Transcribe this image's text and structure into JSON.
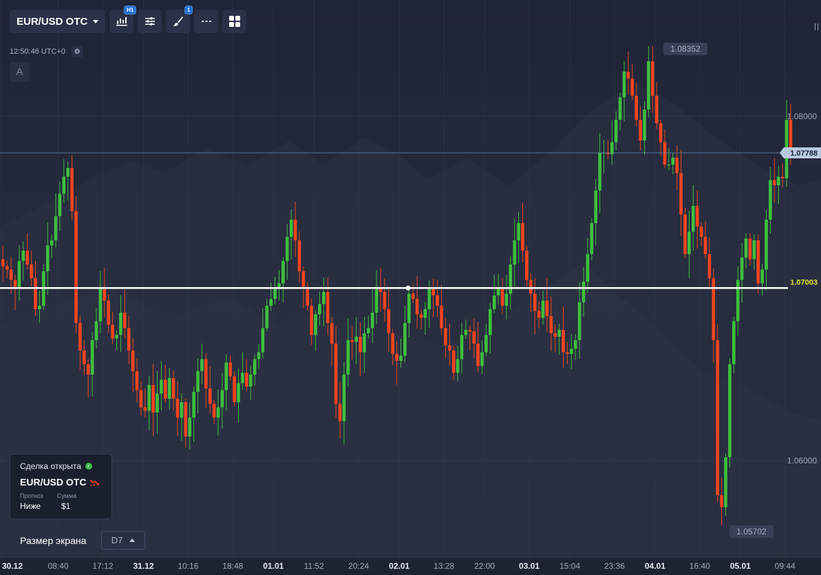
{
  "toolbar": {
    "pair_label": "EUR/USD OTC",
    "timeframe_badge": "H1",
    "drawings_badge": "1",
    "icons": [
      "candles-icon",
      "settings-sliders-icon",
      "brush-icon",
      "more-dots-icon",
      "grid-icon"
    ]
  },
  "time": {
    "clock": "12:50:46",
    "tz": "UTC+0"
  },
  "a_button": "A",
  "trade": {
    "status": "Сделка открыта",
    "pair": "EUR/USD OTC",
    "forecast_label": "Прогноз",
    "amount_label": "Сумма",
    "forecast_value": "Ниже",
    "amount_value": "$1"
  },
  "screen_size": {
    "label": "Размер экрана",
    "value": "D7"
  },
  "colors": {
    "up": "#3ec03d",
    "down": "#f2441e",
    "price_line": "#6a8bb0",
    "trade_line": "#ffffff",
    "trade_label": "#e6e62a"
  },
  "chart_data": {
    "type": "candlestick",
    "symbol": "EUR/USD OTC",
    "timeframe": "H1",
    "y_ticks": [
      1.08,
      1.06
    ],
    "ylim": [
      1.0544,
      1.087
    ],
    "current_price": 1.07788,
    "current_price_label": "1.07788",
    "trade_level": 1.07003,
    "trade_level_label": "1.07003",
    "high_label": "1.08352",
    "low_label": "1.05702",
    "x_labels": [
      {
        "label": "30.12",
        "i": 0,
        "bold": true
      },
      {
        "label": "08:40",
        "i": 14,
        "bold": false
      },
      {
        "label": "17:12",
        "i": 25,
        "bold": false
      },
      {
        "label": "31.12",
        "i": 35,
        "bold": true
      },
      {
        "label": "10:16",
        "i": 46,
        "bold": false
      },
      {
        "label": "18:48",
        "i": 57,
        "bold": false
      },
      {
        "label": "01.01",
        "i": 67,
        "bold": true
      },
      {
        "label": "11:52",
        "i": 77,
        "bold": false
      },
      {
        "label": "20:24",
        "i": 88,
        "bold": false
      },
      {
        "label": "02.01",
        "i": 98,
        "bold": true
      },
      {
        "label": "13:28",
        "i": 109,
        "bold": false
      },
      {
        "label": "22:00",
        "i": 119,
        "bold": false
      },
      {
        "label": "03.01",
        "i": 130,
        "bold": true
      },
      {
        "label": "15:04",
        "i": 140,
        "bold": false
      },
      {
        "label": "23:36",
        "i": 151,
        "bold": false
      },
      {
        "label": "04.01",
        "i": 161,
        "bold": true
      },
      {
        "label": "16:40",
        "i": 172,
        "bold": false
      },
      {
        "label": "05.01",
        "i": 182,
        "bold": true
      },
      {
        "label": "09:44",
        "i": 193,
        "bold": false
      }
    ],
    "closes": [
      1.0713,
      1.0711,
      1.0705,
      1.07,
      1.0716,
      1.0722,
      1.0714,
      1.0706,
      1.0688,
      1.069,
      1.071,
      1.0725,
      1.0728,
      1.0742,
      1.0755,
      1.0765,
      1.077,
      1.0745,
      1.068,
      1.0664,
      1.0656,
      1.065,
      1.067,
      1.0681,
      1.0701,
      1.0693,
      1.0679,
      1.0671,
      1.0673,
      1.0686,
      1.0677,
      1.0664,
      1.0652,
      1.0641,
      1.0631,
      1.0629,
      1.0644,
      1.0628,
      1.0639,
      1.0647,
      1.0636,
      1.0648,
      1.0636,
      1.0625,
      1.0634,
      1.0614,
      1.0625,
      1.064,
      1.0652,
      1.0659,
      1.0642,
      1.0633,
      1.0625,
      1.0631,
      1.0641,
      1.0657,
      1.0649,
      1.0634,
      1.0645,
      1.0651,
      1.0643,
      1.065,
      1.0659,
      1.0663,
      1.0677,
      1.069,
      1.0694,
      1.07,
      1.0703,
      1.0716,
      1.073,
      1.074,
      1.0728,
      1.071,
      1.0701,
      1.069,
      1.0673,
      1.0685,
      1.0691,
      1.0698,
      1.068,
      1.0668,
      1.0633,
      1.0623,
      1.065,
      1.067,
      1.0669,
      1.0672,
      1.0663,
      1.0674,
      1.0677,
      1.0686,
      1.0701,
      1.0698,
      1.0688,
      1.0674,
      1.0662,
      1.0658,
      1.0661,
      1.068,
      1.0697,
      1.0694,
      1.0685,
      1.0683,
      1.0688,
      1.07,
      1.0696,
      1.069,
      1.0677,
      1.0667,
      1.0664,
      1.0651,
      1.0659,
      1.0673,
      1.0676,
      1.0675,
      1.0668,
      1.0655,
      1.0663,
      1.0673,
      1.0688,
      1.0696,
      1.07,
      1.069,
      1.0697,
      1.0714,
      1.0728,
      1.0738,
      1.0722,
      1.0705,
      1.0697,
      1.0687,
      1.0683,
      1.0693,
      1.0684,
      1.0674,
      1.0672,
      1.0676,
      1.0663,
      1.0662,
      1.0665,
      1.067,
      1.0692,
      1.0704,
      1.072,
      1.0738,
      1.0757,
      1.0779,
      1.0779,
      1.0778,
      1.0785,
      1.0798,
      1.0811,
      1.0826,
      1.0822,
      1.0812,
      1.0798,
      1.0786,
      1.0804,
      1.0832,
      1.0812,
      1.0796,
      1.0785,
      1.0772,
      1.0772,
      1.0776,
      1.0767,
      1.0743,
      1.072,
      1.0733,
      1.0748,
      1.0736,
      1.073,
      1.072,
      1.0706,
      1.067,
      1.058,
      1.0573,
      1.0602,
      1.0656,
      1.0681,
      1.0705,
      1.0718,
      1.0729,
      1.0717,
      1.0728,
      1.0703,
      1.0711,
      1.074,
      1.0763,
      1.076,
      1.0765,
      1.0764,
      1.0798,
      1.0779
    ]
  }
}
